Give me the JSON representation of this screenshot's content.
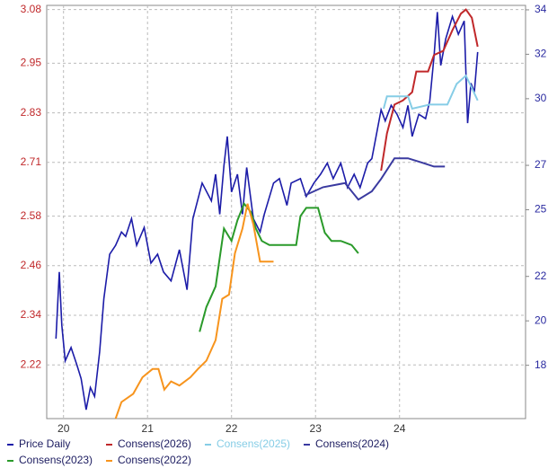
{
  "chart_data": {
    "type": "line",
    "xlim": [
      19.8,
      25.5
    ],
    "xticks": [
      20,
      21,
      22,
      23,
      24
    ],
    "ylim": [
      2.09,
      3.09
    ],
    "yticks": [
      3.08,
      2.95,
      2.83,
      2.71,
      2.58,
      2.46,
      2.34,
      2.22
    ],
    "y2lim": [
      15.6,
      34.2
    ],
    "y2ticks": [
      34,
      32,
      30,
      27,
      25,
      22,
      20,
      18
    ],
    "grid": true,
    "series": [
      {
        "name": "Price Daily",
        "color": "#1c1ca8",
        "axis": "y2",
        "x": [
          19.91,
          19.95,
          19.98,
          20.02,
          20.09,
          20.16,
          20.21,
          20.27,
          20.32,
          20.37,
          20.43,
          20.48,
          20.55,
          20.62,
          20.69,
          20.74,
          20.81,
          20.87,
          20.96,
          21.04,
          21.12,
          21.19,
          21.28,
          21.38,
          21.47,
          21.54,
          21.65,
          21.76,
          21.81,
          21.86,
          21.91,
          21.95,
          22.0,
          22.07,
          22.13,
          22.18,
          22.26,
          22.34,
          22.39,
          22.5,
          22.57,
          22.66,
          22.71,
          22.82,
          22.89,
          22.98,
          23.06,
          23.14,
          23.21,
          23.3,
          23.38,
          23.46,
          23.53,
          23.62,
          23.67,
          23.72,
          23.78,
          23.83,
          23.9,
          23.97,
          24.04,
          24.1,
          24.15,
          24.23,
          24.31,
          24.36,
          24.41,
          24.45,
          24.49,
          24.55,
          24.63,
          24.7,
          24.77,
          24.81,
          24.85,
          24.89,
          24.93
        ],
        "values": [
          19.2,
          22.2,
          19.8,
          18.2,
          18.8,
          18.0,
          17.4,
          16.0,
          17.0,
          16.6,
          18.6,
          21.0,
          23.0,
          23.4,
          24.0,
          23.8,
          24.6,
          23.4,
          24.2,
          22.6,
          23.0,
          22.2,
          21.8,
          23.2,
          21.4,
          24.6,
          26.2,
          25.4,
          26.6,
          24.8,
          27.0,
          28.3,
          25.8,
          26.6,
          24.8,
          26.9,
          24.6,
          24.0,
          24.8,
          26.2,
          26.4,
          25.2,
          26.2,
          26.4,
          25.6,
          26.2,
          26.6,
          27.1,
          26.4,
          27.1,
          26.0,
          26.6,
          26.0,
          27.1,
          27.3,
          28.3,
          29.5,
          29.0,
          29.7,
          29.3,
          28.7,
          29.7,
          28.3,
          29.3,
          29.1,
          29.9,
          31.9,
          33.9,
          31.5,
          32.7,
          33.7,
          32.9,
          33.5,
          28.9,
          30.7,
          30.3,
          32.1
        ]
      },
      {
        "name": "Consens(2026)",
        "color": "#c0282a",
        "axis": "y",
        "x": [
          23.78,
          23.85,
          23.94,
          24.04,
          24.15,
          24.2,
          24.34,
          24.41,
          24.52,
          24.63,
          24.73,
          24.79,
          24.86,
          24.93
        ],
        "values": [
          2.69,
          2.78,
          2.85,
          2.86,
          2.88,
          2.93,
          2.93,
          2.97,
          2.98,
          3.03,
          3.07,
          3.08,
          3.06,
          2.99
        ]
      },
      {
        "name": "Consens(2025)",
        "color": "#86cde6",
        "axis": "y",
        "x": [
          23.81,
          23.85,
          23.99,
          24.1,
          24.15,
          24.36,
          24.57,
          24.68,
          24.79,
          24.86,
          24.93
        ],
        "values": [
          2.84,
          2.87,
          2.87,
          2.87,
          2.84,
          2.85,
          2.85,
          2.9,
          2.92,
          2.89,
          2.86
        ]
      },
      {
        "name": "Consens(2024)",
        "color": "#3a3aa0",
        "axis": "y",
        "x": [
          22.87,
          23.09,
          23.35,
          23.51,
          23.67,
          23.78,
          23.94,
          24.1,
          24.26,
          24.41,
          24.54
        ],
        "values": [
          2.63,
          2.65,
          2.66,
          2.62,
          2.64,
          2.67,
          2.72,
          2.72,
          2.71,
          2.7,
          2.7
        ]
      },
      {
        "name": "Consens(2023)",
        "color": "#2a9a2a",
        "axis": "y",
        "x": [
          21.62,
          21.7,
          21.81,
          21.91,
          22.0,
          22.07,
          22.15,
          22.23,
          22.29,
          22.36,
          22.45,
          22.77,
          22.82,
          22.89,
          23.03,
          23.11,
          23.19,
          23.3,
          23.43,
          23.51
        ],
        "values": [
          2.3,
          2.36,
          2.41,
          2.55,
          2.52,
          2.57,
          2.61,
          2.59,
          2.55,
          2.52,
          2.51,
          2.51,
          2.58,
          2.6,
          2.6,
          2.54,
          2.52,
          2.52,
          2.51,
          2.49
        ]
      },
      {
        "name": "Consens(2022)",
        "color": "#f7941d",
        "axis": "y",
        "x": [
          20.62,
          20.69,
          20.83,
          20.94,
          21.06,
          21.13,
          21.2,
          21.28,
          21.38,
          21.51,
          21.6,
          21.7,
          21.81,
          21.89,
          21.97,
          22.04,
          22.13,
          22.19,
          22.26,
          22.34,
          22.5
        ],
        "values": [
          2.09,
          2.13,
          2.15,
          2.19,
          2.21,
          2.21,
          2.16,
          2.18,
          2.17,
          2.19,
          2.21,
          2.23,
          2.28,
          2.38,
          2.39,
          2.49,
          2.55,
          2.61,
          2.56,
          2.47,
          2.47
        ]
      }
    ]
  }
}
